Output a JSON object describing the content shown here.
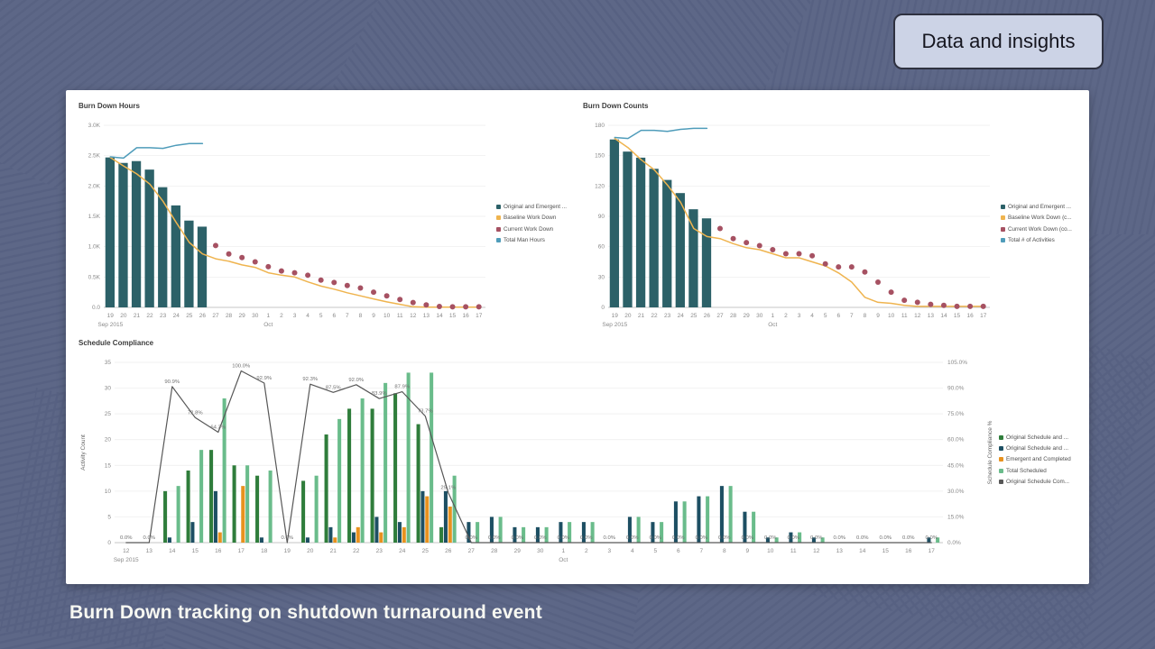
{
  "slide": {
    "badge_label": "Data and insights",
    "caption": "Burn Down tracking on shutdown turnaround event",
    "background_color": "#5d6787",
    "badge_bg": "#ccd3e6",
    "panel_bg": "#ffffff"
  },
  "colors": {
    "teal_bar": "#2c6168",
    "baseline_orange": "#efb44f",
    "current_maroon": "#a65162",
    "total_blue": "#4f9cba",
    "dark_green_bar": "#2f7d3b",
    "navy_bar": "#1d4f63",
    "orange_bar": "#e8921e",
    "light_green_bar": "#6abc8b",
    "compliance_gray": "#575757"
  },
  "chart_data": [
    {
      "type": "bar",
      "title": "Burn Down Hours",
      "x": [
        "19",
        "20",
        "21",
        "22",
        "23",
        "24",
        "25",
        "26",
        "27",
        "28",
        "29",
        "30",
        "1",
        "2",
        "3",
        "4",
        "5",
        "6",
        "7",
        "8",
        "9",
        "10",
        "11",
        "12",
        "13",
        "14",
        "15",
        "16",
        "17"
      ],
      "x_group_labels": [
        {
          "index": 0,
          "label": "Sep 2015"
        },
        {
          "index": 12,
          "label": "Oct"
        }
      ],
      "left_axis": {
        "min": 0,
        "max": 3000,
        "tick_values": [
          0,
          500,
          1000,
          1500,
          2000,
          2500,
          3000
        ],
        "tick_labels": [
          "0.0",
          "0.5K",
          "1.0K",
          "1.5K",
          "2.0K",
          "2.5K",
          "3.0K"
        ]
      },
      "series": [
        {
          "name": "Original and Emergent ...",
          "kind": "bar",
          "color": "#2c6168",
          "values": [
            2470,
            2380,
            2410,
            2270,
            1980,
            1680,
            1430,
            1330,
            null,
            null,
            null,
            null,
            null,
            null,
            null,
            null,
            null,
            null,
            null,
            null,
            null,
            null,
            null,
            null,
            null,
            null,
            null,
            null,
            null
          ]
        },
        {
          "name": "Baseline Work Down",
          "kind": "line",
          "color": "#efb44f",
          "values": [
            2470,
            2330,
            2200,
            2030,
            1750,
            1400,
            1070,
            880,
            800,
            760,
            700,
            660,
            570,
            530,
            500,
            420,
            350,
            300,
            240,
            190,
            140,
            90,
            50,
            10,
            5,
            5,
            5,
            5,
            5
          ]
        },
        {
          "name": "Current Work Down",
          "kind": "points",
          "color": "#a65162",
          "values": [
            null,
            null,
            null,
            null,
            null,
            null,
            null,
            null,
            1020,
            880,
            820,
            750,
            670,
            600,
            570,
            530,
            450,
            410,
            360,
            320,
            250,
            190,
            130,
            80,
            40,
            15,
            10,
            10,
            10
          ]
        },
        {
          "name": "Total Man Hours",
          "kind": "line",
          "color": "#4f9cba",
          "values": [
            2480,
            2460,
            2630,
            2630,
            2620,
            2670,
            2700,
            2700,
            null,
            null,
            null,
            null,
            null,
            null,
            null,
            null,
            null,
            null,
            null,
            null,
            null,
            null,
            null,
            null,
            null,
            null,
            null,
            null,
            null
          ]
        }
      ]
    },
    {
      "type": "bar",
      "title": "Burn Down Counts",
      "x": [
        "19",
        "20",
        "21",
        "22",
        "23",
        "24",
        "25",
        "26",
        "27",
        "28",
        "29",
        "30",
        "1",
        "2",
        "3",
        "4",
        "5",
        "6",
        "7",
        "8",
        "9",
        "10",
        "11",
        "12",
        "13",
        "14",
        "15",
        "16",
        "17"
      ],
      "x_group_labels": [
        {
          "index": 0,
          "label": "Sep 2015"
        },
        {
          "index": 12,
          "label": "Oct"
        }
      ],
      "left_axis": {
        "min": 0,
        "max": 180,
        "tick_values": [
          0,
          30,
          60,
          90,
          120,
          150,
          180
        ],
        "tick_labels": [
          "0",
          "30",
          "60",
          "90",
          "120",
          "150",
          "180"
        ]
      },
      "series": [
        {
          "name": "Original and Emergent ...",
          "kind": "bar",
          "color": "#2c6168",
          "values": [
            166,
            154,
            148,
            137,
            126,
            113,
            97,
            88,
            null,
            null,
            null,
            null,
            null,
            null,
            null,
            null,
            null,
            null,
            null,
            null,
            null,
            null,
            null,
            null,
            null,
            null,
            null,
            null,
            null
          ]
        },
        {
          "name": "Baseline Work Down (c...",
          "kind": "line",
          "color": "#efb44f",
          "values": [
            167,
            158,
            146,
            136,
            121,
            104,
            78,
            70,
            68,
            63,
            59,
            57,
            53,
            49,
            49,
            45,
            41,
            34,
            25,
            10,
            5,
            4,
            2,
            1,
            1,
            1,
            1,
            1,
            1
          ]
        },
        {
          "name": "Current Work Down (co...",
          "kind": "points",
          "color": "#a65162",
          "values": [
            null,
            null,
            null,
            null,
            null,
            null,
            null,
            null,
            78,
            68,
            64,
            61,
            57,
            53,
            53,
            51,
            43,
            40,
            40,
            35,
            25,
            15,
            7,
            5,
            3,
            2,
            1,
            1,
            1
          ]
        },
        {
          "name": "Total # of Activities",
          "kind": "line",
          "color": "#4f9cba",
          "values": [
            168,
            167,
            175,
            175,
            174,
            176,
            177,
            177,
            null,
            null,
            null,
            null,
            null,
            null,
            null,
            null,
            null,
            null,
            null,
            null,
            null,
            null,
            null,
            null,
            null,
            null,
            null,
            null,
            null
          ]
        }
      ]
    },
    {
      "type": "bar",
      "title": "Schedule Compliance",
      "x": [
        "12",
        "13",
        "14",
        "15",
        "16",
        "17",
        "18",
        "19",
        "20",
        "21",
        "22",
        "23",
        "24",
        "25",
        "26",
        "27",
        "28",
        "29",
        "30",
        "1",
        "2",
        "3",
        "4",
        "5",
        "6",
        "7",
        "8",
        "9",
        "10",
        "11",
        "12",
        "13",
        "14",
        "15",
        "16",
        "17"
      ],
      "x_group_labels": [
        {
          "index": 0,
          "label": "Sep 2015"
        },
        {
          "index": 19,
          "label": "Oct"
        }
      ],
      "left_axis": {
        "title": "Activity Count",
        "min": 0,
        "max": 35,
        "tick_values": [
          0,
          5,
          10,
          15,
          20,
          25,
          30,
          35
        ],
        "tick_labels": [
          "0",
          "5",
          "10",
          "15",
          "20",
          "25",
          "30",
          "35"
        ]
      },
      "right_axis": {
        "title": "Schedule Compliance %",
        "min": 0,
        "max": 105,
        "tick_values": [
          0,
          15,
          30,
          45,
          60,
          75,
          90,
          105
        ],
        "tick_labels": [
          "0.0%",
          "15.0%",
          "30.0%",
          "45.0%",
          "60.0%",
          "75.0%",
          "90.0%",
          "105.0%"
        ]
      },
      "series": [
        {
          "name": "Original Schedule and ...",
          "kind": "bar",
          "color": "#2f7d3b",
          "values": [
            0,
            0,
            10,
            14,
            18,
            15,
            13,
            0,
            12,
            21,
            26,
            26,
            29,
            23,
            3,
            0,
            0,
            0,
            0,
            0,
            0,
            0,
            0,
            0,
            0,
            0,
            0,
            0,
            0,
            0,
            0,
            0,
            0,
            0,
            0,
            0
          ]
        },
        {
          "name": "Original Schedule and ...",
          "kind": "bar",
          "color": "#1d4f63",
          "values": [
            0,
            0,
            1,
            4,
            10,
            0,
            1,
            0,
            1,
            3,
            2,
            5,
            4,
            10,
            10,
            4,
            5,
            3,
            3,
            4,
            4,
            0,
            5,
            4,
            8,
            9,
            11,
            6,
            1,
            2,
            1,
            0,
            0,
            0,
            0,
            1
          ]
        },
        {
          "name": "Emergent and Completed",
          "kind": "bar",
          "color": "#e8921e",
          "values": [
            0,
            0,
            0,
            0,
            2,
            11,
            0,
            0,
            0,
            1,
            3,
            2,
            3,
            9,
            7,
            0,
            0,
            0,
            0,
            0,
            0,
            0,
            0,
            0,
            0,
            0,
            0,
            0,
            0,
            0,
            0,
            0,
            0,
            0,
            0,
            0
          ]
        },
        {
          "name": "Total Scheduled",
          "kind": "bar",
          "color": "#6abc8b",
          "values": [
            0,
            0,
            11,
            18,
            28,
            15,
            14,
            0,
            13,
            24,
            28,
            31,
            33,
            33,
            13,
            4,
            5,
            3,
            3,
            4,
            4,
            0,
            5,
            4,
            8,
            9,
            11,
            6,
            1,
            2,
            1,
            0,
            0,
            0,
            0,
            1
          ]
        },
        {
          "name": "Original Schedule Com...",
          "kind": "line",
          "axis": "right",
          "color": "#575757",
          "values": [
            0,
            0,
            90.9,
            72.8,
            64.3,
            100,
            92.9,
            0,
            92.3,
            87.5,
            92,
            83.9,
            87.9,
            73.7,
            29.1,
            0,
            0,
            0,
            0,
            0,
            0,
            0,
            0,
            0,
            0,
            0,
            0,
            0,
            0,
            0,
            0,
            0,
            0,
            0,
            0,
            0
          ],
          "point_labels": [
            "0.0%",
            "0.0%",
            "90.9%",
            "72.8%",
            "64.3%",
            "100.0%",
            "92.9%",
            "0.0%",
            "92.3%",
            "87.5%",
            "92.0%",
            "83.9%",
            "87.9%",
            "73.7%",
            "29.1%",
            "0.0%",
            "0.0%",
            "0.0%",
            "0.0%",
            "0.0%",
            "0.0%",
            "0.0%",
            "0.0%",
            "0.0%",
            "0.0%",
            "0.0%",
            "0.0%",
            "0.0%",
            "0.0%",
            "0.0%",
            "0.0%",
            "0.0%",
            "0.0%",
            "0.0%",
            "0.0%",
            "0.0%"
          ]
        }
      ]
    }
  ]
}
